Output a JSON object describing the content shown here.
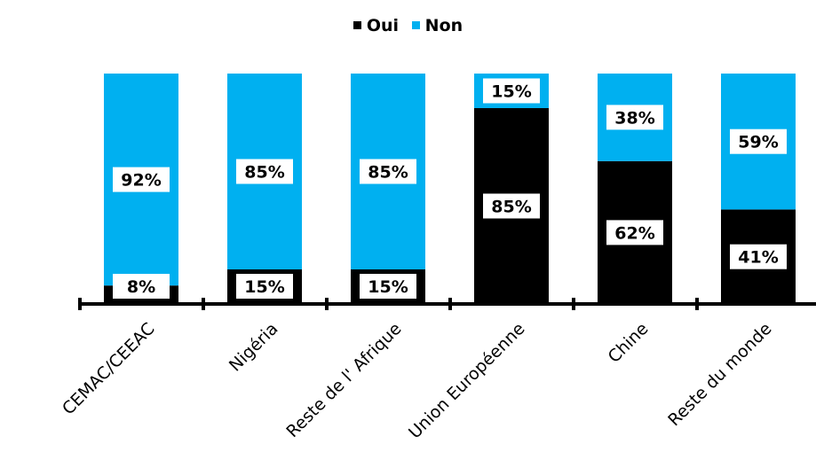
{
  "chart_data": {
    "type": "bar",
    "stacked": true,
    "percent": true,
    "categories": [
      "CEMAC/CEEAC",
      "Nigéria",
      "Reste de l' Afrique",
      "Union Européenne",
      "Chine",
      "Reste du monde"
    ],
    "series": [
      {
        "name": "Oui",
        "color": "#000000",
        "values": [
          8,
          15,
          15,
          85,
          62,
          41
        ]
      },
      {
        "name": "Non",
        "color": "#00b0f0",
        "values": [
          92,
          85,
          85,
          15,
          38,
          59
        ]
      }
    ],
    "data_labels": {
      "Oui": [
        "8%",
        "15%",
        "15%",
        "85%",
        "62%",
        "41%"
      ],
      "Non": [
        "92%",
        "85%",
        "85%",
        "15%",
        "38%",
        "59%"
      ]
    },
    "ylim": [
      0,
      100
    ],
    "legend": "top-center",
    "grid": false
  }
}
